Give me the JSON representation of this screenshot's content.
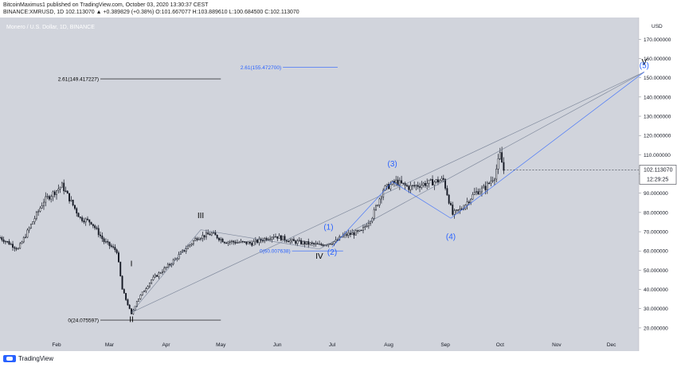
{
  "header": {
    "publish_line": "BitcoinMaximus1 published on TradingView.com, October 03, 2020 13:30:37 CEST",
    "symbol_line": "BINANCE:XMRUSD, 1D  102.113070 ▲ +0.389829 (+0.38%) O:101.667077 H:103.889610 L:100.684500 C:102.113070"
  },
  "footer": {
    "brand": "TradingView",
    "logo_icon": "tradingview-logo-icon"
  },
  "colors": {
    "plot_bg": "#d1d4dc",
    "candle": "#131722",
    "wave_blue": "#2962ff",
    "wave_black": "#000000",
    "guide_line": "#6f7a8f",
    "price_tag_bg": "#ffffff"
  },
  "chart_data": {
    "type": "candlestick",
    "title": "Monero / U.S. Dollar, 1D, BINANCE",
    "currency": "USD",
    "ylim": [
      15,
      178
    ],
    "y_ticks": [
      20,
      30,
      40,
      50,
      60,
      70,
      80,
      90,
      100,
      110,
      120,
      130,
      140,
      150,
      160,
      170
    ],
    "x_ticks": [
      "Feb",
      "Mar",
      "Apr",
      "May",
      "Jun",
      "Jul",
      "Aug",
      "Sep",
      "Oct",
      "Nov",
      "Dec"
    ],
    "x_tick_days": [
      31,
      60,
      91,
      121,
      152,
      182,
      213,
      244,
      274,
      305,
      335
    ],
    "x_range_days": [
      0,
      350
    ],
    "last_price": "102.113070",
    "countdown": "12:29:25",
    "anchors": [
      [
        0,
        67
      ],
      [
        10,
        61
      ],
      [
        24,
        86
      ],
      [
        34,
        94
      ],
      [
        44,
        77
      ],
      [
        50,
        75
      ],
      [
        57,
        65
      ],
      [
        64,
        60
      ],
      [
        67,
        40
      ],
      [
        72,
        27
      ],
      [
        75,
        34
      ],
      [
        83,
        45
      ],
      [
        93,
        53
      ],
      [
        108,
        67
      ],
      [
        116,
        69
      ],
      [
        123,
        65
      ],
      [
        138,
        64
      ],
      [
        150,
        68
      ],
      [
        160,
        65
      ],
      [
        175,
        63
      ],
      [
        184,
        65
      ],
      [
        188,
        68
      ],
      [
        198,
        70
      ],
      [
        204,
        78
      ],
      [
        210,
        92
      ],
      [
        217,
        96
      ],
      [
        224,
        93
      ],
      [
        233,
        95
      ],
      [
        243,
        97
      ],
      [
        248,
        79
      ],
      [
        253,
        82
      ],
      [
        260,
        90
      ],
      [
        266,
        93
      ],
      [
        271,
        99
      ],
      [
        274,
        110
      ],
      [
        276,
        102
      ]
    ],
    "waves": [
      {
        "label": "I",
        "x_day": 72,
        "y": 52,
        "color": "black"
      },
      {
        "label": "II",
        "x_day": 72,
        "y": 23,
        "color": "black"
      },
      {
        "label": "III",
        "x_day": 110,
        "y": 77,
        "color": "black"
      },
      {
        "label": "IV",
        "x_day": 175,
        "y": 56,
        "color": "black"
      },
      {
        "label": "V",
        "x_day": 353,
        "y": 157,
        "color": "black"
      },
      {
        "label": "(1)",
        "x_day": 180,
        "y": 71,
        "color": "blue"
      },
      {
        "label": "(2)",
        "x_day": 182,
        "y": 58,
        "color": "blue"
      },
      {
        "label": "(3)",
        "x_day": 215,
        "y": 104,
        "color": "blue"
      },
      {
        "label": "(4)",
        "x_day": 247,
        "y": 66,
        "color": "blue"
      },
      {
        "label": "(5)",
        "x_day": 353,
        "y": 155,
        "color": "blue"
      }
    ],
    "fib_levels": [
      {
        "label": "2.61(149.417227)",
        "value": 149.42,
        "x_start_day": 55,
        "x_end_day": 121,
        "color": "black"
      },
      {
        "label": "0(24.075597)",
        "value": 24.08,
        "x_start_day": 55,
        "x_end_day": 121,
        "color": "black"
      },
      {
        "label": "2.61(155.472700)",
        "value": 155.47,
        "x_start_day": 155,
        "x_end_day": 185,
        "color": "blue"
      },
      {
        "label": "0(60.007638)",
        "value": 60.01,
        "x_start_day": 160,
        "x_end_day": 188,
        "color": "blue"
      }
    ],
    "trend_lines": [
      {
        "from": [
          72,
          28
        ],
        "to": [
          110,
          71
        ],
        "color": "grey"
      },
      {
        "from": [
          110,
          71
        ],
        "to": [
          175,
          61
        ],
        "color": "grey"
      },
      {
        "from": [
          175,
          61
        ],
        "to": [
          353,
          153
        ],
        "color": "grey"
      },
      {
        "from": [
          72,
          28
        ],
        "to": [
          353,
          153
        ],
        "color": "grey"
      },
      {
        "from": [
          182,
          62
        ],
        "to": [
          215,
          96
        ],
        "color": "blue"
      },
      {
        "from": [
          215,
          96
        ],
        "to": [
          247,
          77
        ],
        "color": "blue"
      },
      {
        "from": [
          247,
          77
        ],
        "to": [
          353,
          153
        ],
        "color": "blue"
      }
    ]
  }
}
